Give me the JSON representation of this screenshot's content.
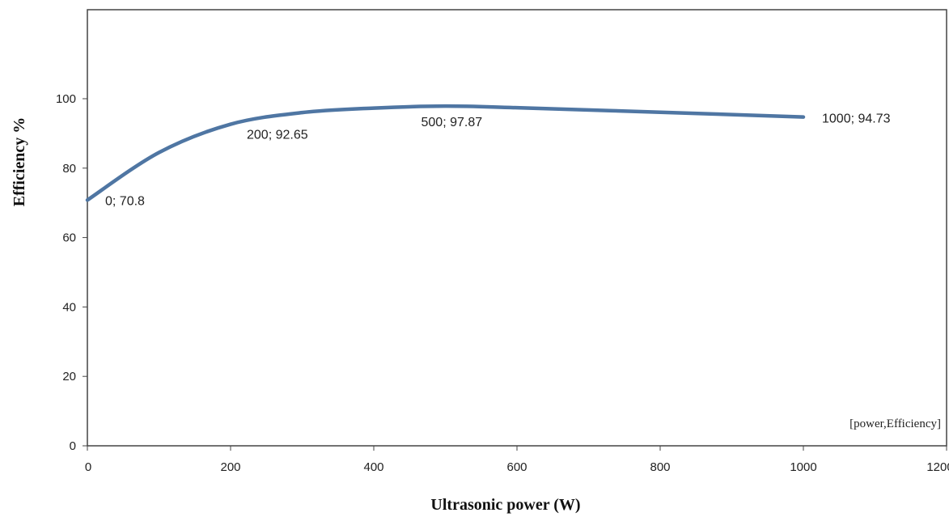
{
  "chart_data": {
    "type": "line",
    "title": "",
    "xlabel": "Ultrasonic power (W)",
    "ylabel": "Efficiency %",
    "xlim": [
      0,
      1200
    ],
    "ylim": [
      0,
      100
    ],
    "xticks": [
      "0",
      "200",
      "400",
      "600",
      "800",
      "1000",
      "1200"
    ],
    "yticks": [
      "0",
      "20",
      "40",
      "60",
      "80",
      "100"
    ],
    "grid": false,
    "series_tag": "[power,Efficiency]",
    "series": [
      {
        "color": "#4f76a3",
        "x": [
          0,
          100,
          200,
          300,
          400,
          500,
          600,
          800,
          1000
        ],
        "y": [
          70.8,
          84.5,
          92.65,
          96.0,
          97.3,
          97.87,
          97.4,
          96.1,
          94.73
        ]
      }
    ],
    "data_labels": [
      {
        "text": "0; 70.8"
      },
      {
        "text": "200; 92.65"
      },
      {
        "text": "500; 97.87"
      },
      {
        "text": "1000; 94.73"
      }
    ]
  }
}
